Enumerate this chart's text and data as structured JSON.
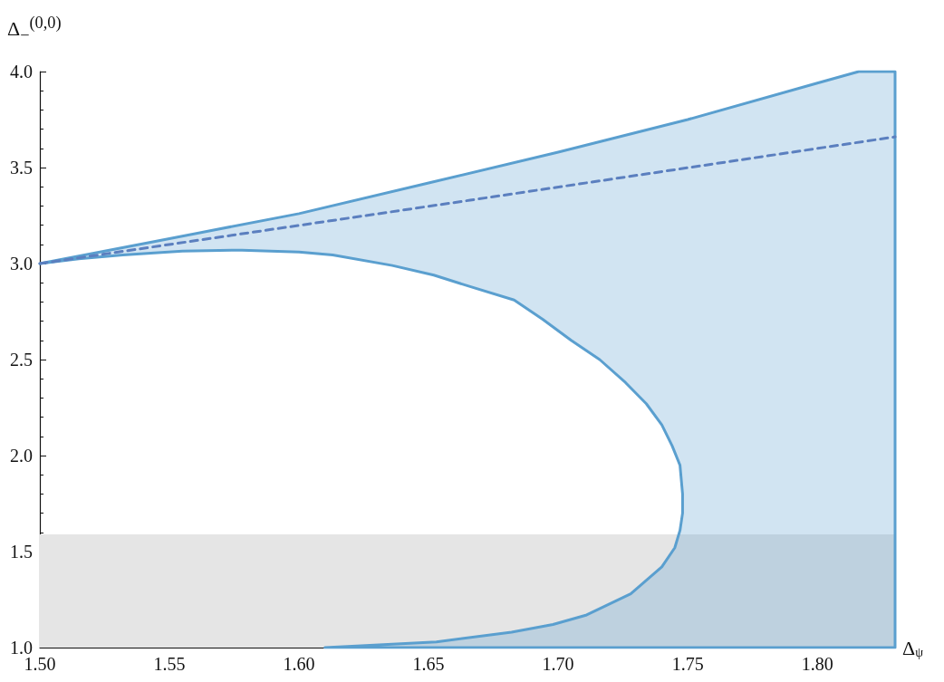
{
  "chart_data": {
    "type": "line",
    "xlabel": "Δ$_{ψ}$",
    "ylabel": "Δ$_{−}$$^{(0,0)}$",
    "xlim": [
      1.5,
      1.83
    ],
    "ylim": [
      1.0,
      4.0
    ],
    "xticks": [
      {
        "value": 1.5,
        "label": "1.50"
      },
      {
        "value": 1.55,
        "label": "1.55"
      },
      {
        "value": 1.6,
        "label": "1.60"
      },
      {
        "value": 1.65,
        "label": "1.65"
      },
      {
        "value": 1.7,
        "label": "1.70"
      },
      {
        "value": 1.75,
        "label": "1.75"
      },
      {
        "value": 1.8,
        "label": "1.80"
      }
    ],
    "yticks": [
      {
        "value": 1.0,
        "label": "1.0"
      },
      {
        "value": 1.5,
        "label": "1.5"
      },
      {
        "value": 2.0,
        "label": "2.0"
      },
      {
        "value": 2.5,
        "label": "2.5"
      },
      {
        "value": 3.0,
        "label": "3.0"
      },
      {
        "value": 3.5,
        "label": "3.5"
      },
      {
        "value": 4.0,
        "label": "4.0"
      }
    ],
    "series": [
      {
        "type": "area",
        "color": "#5a9fcf",
        "x": [
          1.5,
          1.55,
          1.6,
          1.65,
          1.7,
          1.75,
          1.8,
          1.816,
          1.83,
          1.83,
          1.61,
          1.624,
          1.653,
          1.682,
          1.698,
          1.711,
          1.728,
          1.74,
          1.745,
          1.747,
          1.748,
          1.748,
          1.747,
          1.744,
          1.74,
          1.734,
          1.726,
          1.716,
          1.705,
          1.694,
          1.683,
          1.666,
          1.652,
          1.636,
          1.613,
          1.6,
          1.578,
          1.555,
          1.532,
          1.515,
          1.5
        ],
        "values": [
          3.0,
          3.13,
          3.26,
          3.42,
          3.58,
          3.75,
          3.94,
          4.0,
          4.0,
          1.0,
          1.0,
          1.01,
          1.03,
          1.08,
          1.12,
          1.17,
          1.28,
          1.42,
          1.52,
          1.61,
          1.7,
          1.8,
          1.95,
          2.05,
          2.16,
          2.27,
          2.38,
          2.5,
          2.6,
          2.71,
          2.81,
          2.88,
          2.94,
          2.99,
          3.045,
          3.06,
          3.07,
          3.065,
          3.045,
          3.025,
          3.0
        ]
      },
      {
        "line_style": "dashed",
        "color": "#5b7fbf",
        "x": [
          1.5,
          1.666,
          1.83
        ],
        "values": [
          3.0,
          3.33,
          3.66
        ]
      }
    ],
    "bands": [
      {
        "axis": "y",
        "from": 1.0,
        "to": 1.59,
        "color": "#e5e5e5"
      }
    ],
    "grid": false,
    "marker": "none"
  }
}
